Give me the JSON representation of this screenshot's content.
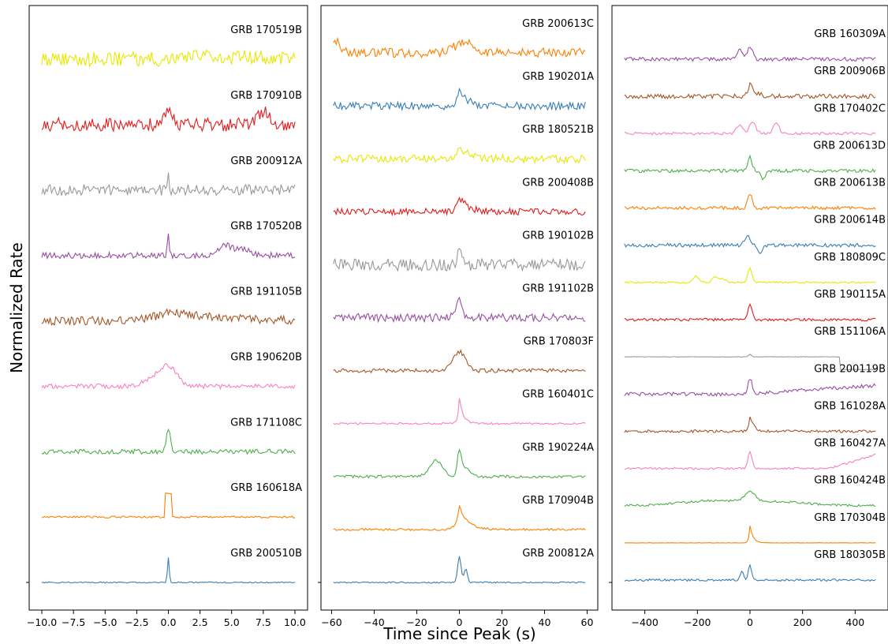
{
  "figure": {
    "ylabel": "Normalized Rate",
    "xlabel": "Time since Peak (s)"
  },
  "chart_data": [
    {
      "type": "line",
      "panel": "left",
      "xlim": [
        -11,
        11
      ],
      "xticks": [
        -10.0,
        -7.5,
        -5.0,
        -2.5,
        0.0,
        2.5,
        5.0,
        7.5,
        10.0
      ],
      "xtick_labels": [
        "−10.0",
        "−7.5",
        "−5.0",
        "−2.5",
        "0.0",
        "2.5",
        "5.0",
        "7.5",
        "10.0"
      ],
      "series": [
        {
          "name": "GRB 170519B",
          "color": "#e8e800",
          "shape": "noisy-step",
          "noise": 0.6,
          "step": 0.15
        },
        {
          "name": "GRB 170910B",
          "color": "#e41a1c",
          "shape": "noisy-bumps",
          "noise": 0.55,
          "bumps": [
            [
              0,
              0.4,
              1.1
            ],
            [
              7.6,
              0.5,
              1.0
            ]
          ]
        },
        {
          "name": "GRB 200912A",
          "color": "#999999",
          "shape": "noisy-spike",
          "noise": 0.45,
          "spike": [
            0,
            0.05,
            1.3
          ]
        },
        {
          "name": "GRB 170520B",
          "color": "#984ea3",
          "shape": "noisy-bumps",
          "noise": 0.25,
          "bumps": [
            [
              0,
              0.08,
              1.6
            ],
            [
              4.4,
              0.5,
              0.8
            ],
            [
              5.8,
              0.6,
              0.6
            ]
          ]
        },
        {
          "name": "GRB 191105B",
          "color": "#a65628",
          "shape": "noisy-decay",
          "noise": 0.35,
          "peak": 0,
          "amp": 0.8,
          "decay": 4.0
        },
        {
          "name": "GRB 190620B",
          "color": "#f781bf",
          "shape": "noisy-bumps",
          "noise": 0.2,
          "bumps": [
            [
              0,
              0.7,
              1.5
            ],
            [
              -1.2,
              0.8,
              0.5
            ]
          ]
        },
        {
          "name": "GRB 171108C",
          "color": "#4daf4a",
          "shape": "noisy-spike",
          "noise": 0.2,
          "spike": [
            0,
            0.15,
            1.8
          ]
        },
        {
          "name": "GRB 160618A",
          "color": "#ff7f00",
          "shape": "top-hat",
          "noise": 0.08,
          "width": 0.25,
          "amp": 1.9
        },
        {
          "name": "GRB 200510B",
          "color": "#377eb8",
          "shape": "noisy-spike",
          "noise": 0.05,
          "spike": [
            0,
            0.07,
            2.0
          ]
        }
      ]
    },
    {
      "type": "line",
      "panel": "middle",
      "xlim": [
        -65,
        65
      ],
      "xticks": [
        -60,
        -40,
        -20,
        0,
        20,
        40,
        60
      ],
      "xtick_labels": [
        "−60",
        "−40",
        "−20",
        "0",
        "20",
        "40",
        "60"
      ],
      "series": [
        {
          "name": "GRB 200613C",
          "color": "#ff7f00",
          "shape": "noisy-bumps",
          "noise": 0.35,
          "bumps": [
            [
              -58,
              2,
              0.9
            ],
            [
              2,
              4,
              0.8
            ]
          ]
        },
        {
          "name": "GRB 190201A",
          "color": "#377eb8",
          "shape": "noisy-decay",
          "noise": 0.3,
          "peak": 0,
          "amp": 1.0,
          "decay": 4.0
        },
        {
          "name": "GRB 180521B",
          "color": "#e8e800",
          "shape": "noisy-decay",
          "noise": 0.3,
          "peak": 0,
          "amp": 1.0,
          "decay": 4.0
        },
        {
          "name": "GRB 200408B",
          "color": "#e41a1c",
          "shape": "noisy-decay",
          "noise": 0.25,
          "peak": 0,
          "amp": 1.1,
          "decay": 4.0
        },
        {
          "name": "GRB 190102B",
          "color": "#999999",
          "shape": "noisy-spike",
          "noise": 0.45,
          "spike": [
            0,
            1.0,
            1.1
          ]
        },
        {
          "name": "GRB 191102B",
          "color": "#984ea3",
          "shape": "noisy-spike",
          "noise": 0.3,
          "spike": [
            0,
            1.5,
            1.3
          ]
        },
        {
          "name": "GRB 170803F",
          "color": "#a65628",
          "shape": "noisy-bumps",
          "noise": 0.15,
          "bumps": [
            [
              0,
              3,
              1.4
            ]
          ]
        },
        {
          "name": "GRB 160401C",
          "color": "#f781bf",
          "shape": "noisy-decay",
          "noise": 0.07,
          "peak": 0,
          "amp": 1.9,
          "decay": 1.8
        },
        {
          "name": "GRB 190224A",
          "color": "#4daf4a",
          "shape": "noisy-bumps",
          "noise": 0.1,
          "bumps": [
            [
              -11,
              3,
              1.2
            ],
            [
              0,
              1,
              1.8
            ],
            [
              3,
              2,
              0.6
            ]
          ]
        },
        {
          "name": "GRB 170904B",
          "color": "#ff7f00",
          "shape": "noisy-decay",
          "noise": 0.08,
          "peak": 0,
          "amp": 1.7,
          "decay": 4.0
        },
        {
          "name": "GRB 200812A",
          "color": "#377eb8",
          "shape": "noisy-bumps",
          "noise": 0.05,
          "bumps": [
            [
              0,
              0.8,
              1.9
            ],
            [
              3,
              0.8,
              1.0
            ]
          ]
        }
      ]
    },
    {
      "type": "line",
      "panel": "right",
      "xlim": [
        -525,
        525
      ],
      "xticks": [
        -400,
        -200,
        0,
        200,
        400
      ],
      "xtick_labels": [
        "−400",
        "−200",
        "0",
        "200",
        "400"
      ],
      "series": [
        {
          "name": "GRB 160309A",
          "color": "#984ea3",
          "shape": "noisy-bumps",
          "noise": 0.2,
          "bumps": [
            [
              -40,
              10,
              1.0
            ],
            [
              0,
              10,
              1.4
            ]
          ]
        },
        {
          "name": "GRB 200906B",
          "color": "#a65628",
          "shape": "noisy-decay",
          "noise": 0.25,
          "peak": 0,
          "amp": 1.5,
          "decay": 20
        },
        {
          "name": "GRB 170402C",
          "color": "#f781bf",
          "shape": "noisy-bumps",
          "noise": 0.15,
          "bumps": [
            [
              -40,
              12,
              1.0
            ],
            [
              10,
              12,
              1.3
            ],
            [
              100,
              10,
              1.3
            ]
          ]
        },
        {
          "name": "GRB 200613D",
          "color": "#4daf4a",
          "shape": "noisy-bumps",
          "noise": 0.18,
          "bumps": [
            [
              0,
              8,
              1.5
            ],
            [
              50,
              8,
              -1.0
            ]
          ]
        },
        {
          "name": "GRB 200613B",
          "color": "#ff7f00",
          "shape": "noisy-spike",
          "noise": 0.18,
          "spike": [
            0,
            8,
            1.6
          ]
        },
        {
          "name": "GRB 200614B",
          "color": "#377eb8",
          "shape": "noisy-bumps",
          "noise": 0.2,
          "bumps": [
            [
              -10,
              10,
              1.1
            ],
            [
              40,
              8,
              -0.8
            ]
          ]
        },
        {
          "name": "GRB 180809C",
          "color": "#e8e800",
          "shape": "noisy-bumps",
          "noise": 0.1,
          "bumps": [
            [
              0,
              8,
              1.6
            ],
            [
              -205,
              10,
              0.7
            ],
            [
              -130,
              12,
              0.6
            ],
            [
              -100,
              8,
              0.4
            ]
          ]
        },
        {
          "name": "GRB 190115A",
          "color": "#e41a1c",
          "shape": "noisy-spike",
          "noise": 0.15,
          "spike": [
            0,
            8,
            1.6
          ]
        },
        {
          "name": "GRB 151106A",
          "color": "#999999",
          "shape": "step-drop",
          "noise": 0.02,
          "spike": [
            0,
            5,
            0.3
          ],
          "drop_at": 340,
          "drop": 1.4
        },
        {
          "name": "GRB 200119B",
          "color": "#984ea3",
          "shape": "noisy-trend",
          "noise": 0.2,
          "spike": [
            0,
            8,
            1.7
          ],
          "trend": 0.002
        },
        {
          "name": "GRB 161028A",
          "color": "#a65628",
          "shape": "noisy-decay",
          "noise": 0.15,
          "peak": 0,
          "amp": 1.6,
          "decay": 15
        },
        {
          "name": "GRB 160427A",
          "color": "#f781bf",
          "shape": "noisy-rise",
          "noise": 0.12,
          "spike": [
            0,
            8,
            1.8
          ],
          "rise_from": 300,
          "rise": 1.9
        },
        {
          "name": "GRB 160424B",
          "color": "#4daf4a",
          "shape": "noisy-bumps",
          "noise": 0.12,
          "bumps": [
            [
              -150,
              120,
              0.5
            ],
            [
              0,
              20,
              1.0
            ],
            [
              100,
              120,
              0.4
            ]
          ]
        },
        {
          "name": "GRB 170304B",
          "color": "#ff7f00",
          "shape": "noisy-decay",
          "noise": 0.02,
          "peak": 0,
          "amp": 1.9,
          "decay": 12
        },
        {
          "name": "GRB 180305B",
          "color": "#377eb8",
          "shape": "noisy-bumps",
          "noise": 0.12,
          "bumps": [
            [
              -30,
              6,
              1.0
            ],
            [
              0,
              6,
              1.7
            ]
          ]
        }
      ]
    }
  ]
}
